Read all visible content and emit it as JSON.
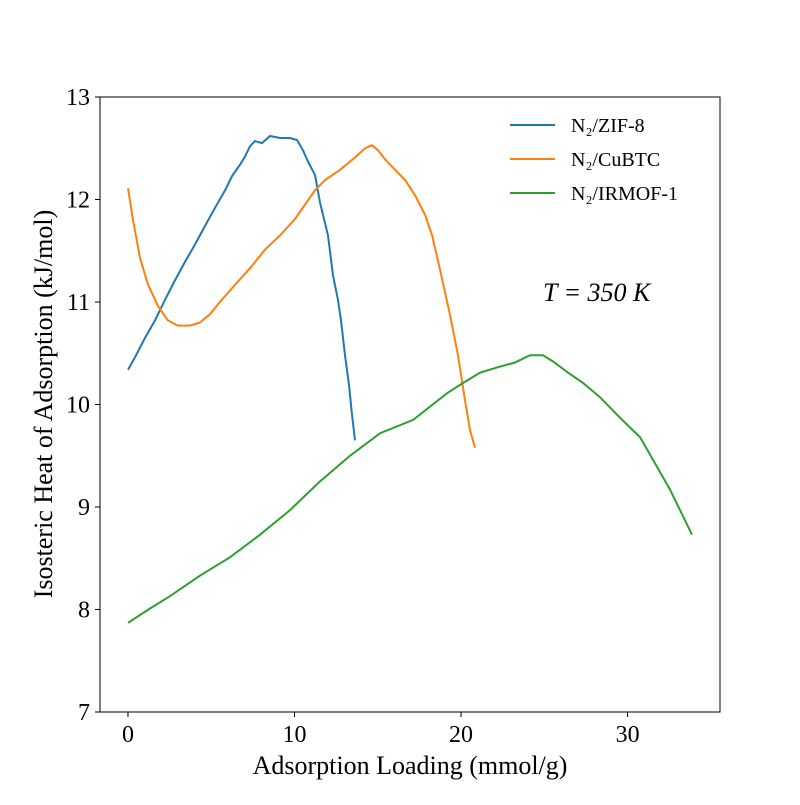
{
  "chart_data": {
    "type": "line",
    "xlabel": "Adsorption Loading (mmol/g)",
    "ylabel": "Isosteric Heat of Adsorption (kJ/mol)",
    "xlim": [
      -1.68,
      35.55
    ],
    "ylim": [
      7,
      13
    ],
    "xticks": [
      0,
      10,
      20,
      30
    ],
    "yticks": [
      7,
      8,
      9,
      10,
      11,
      12,
      13
    ],
    "grid": false,
    "legend_position": "top-right",
    "annotation": "T = 350 K",
    "series": [
      {
        "name": "N₂/ZIF-8",
        "color": "#1f77b4",
        "x": [
          0,
          0.42,
          1.02,
          1.62,
          2.22,
          2.82,
          3.42,
          4.02,
          4.62,
          5.23,
          5.83,
          6.25,
          6.73,
          7.03,
          7.33,
          7.63,
          8.05,
          8.53,
          9.13,
          9.73,
          10.15,
          10.51,
          10.81,
          11.23,
          11.53,
          12.01,
          12.31,
          12.61,
          12.79,
          13.03,
          13.27,
          13.45,
          13.63
        ],
        "y": [
          10.34,
          10.46,
          10.65,
          10.82,
          11.02,
          11.21,
          11.39,
          11.56,
          11.74,
          11.92,
          12.09,
          12.23,
          12.34,
          12.42,
          12.52,
          12.57,
          12.55,
          12.62,
          12.6,
          12.6,
          12.58,
          12.48,
          12.37,
          12.24,
          11.97,
          11.65,
          11.26,
          11.02,
          10.82,
          10.48,
          10.19,
          9.9,
          9.65
        ]
      },
      {
        "name": "N₂/CuBTC",
        "color": "#ff7f0e",
        "x": [
          0,
          0.3,
          0.72,
          1.2,
          1.8,
          2.4,
          3.0,
          3.72,
          4.32,
          4.92,
          5.52,
          6.43,
          7.33,
          8.23,
          9.13,
          10.03,
          10.63,
          11.23,
          11.83,
          12.73,
          13.63,
          14.23,
          14.65,
          15.02,
          15.44,
          16.04,
          16.64,
          17.24,
          17.84,
          18.26,
          18.74,
          19.34,
          19.82,
          20.24,
          20.54,
          20.84
        ],
        "y": [
          12.11,
          11.8,
          11.43,
          11.17,
          10.96,
          10.82,
          10.77,
          10.77,
          10.8,
          10.88,
          11.0,
          11.17,
          11.33,
          11.51,
          11.65,
          11.81,
          11.95,
          12.09,
          12.19,
          12.29,
          12.41,
          12.5,
          12.53,
          12.48,
          12.39,
          12.29,
          12.19,
          12.04,
          11.85,
          11.65,
          11.31,
          10.87,
          10.48,
          10.04,
          9.75,
          9.58
        ]
      },
      {
        "name": "N₂/IRMOF-1",
        "color": "#2ca02c",
        "x": [
          0,
          1.32,
          2.52,
          4.32,
          6.13,
          7.93,
          9.73,
          11.53,
          13.33,
          15.14,
          17.12,
          19.16,
          20.12,
          21.14,
          22.34,
          23.24,
          24.14,
          24.92,
          25.53,
          26.43,
          27.33,
          28.35,
          29.55,
          30.75,
          31.77,
          32.55,
          33.87
        ],
        "y": [
          7.87,
          8.01,
          8.13,
          8.33,
          8.51,
          8.73,
          8.97,
          9.25,
          9.5,
          9.72,
          9.85,
          10.11,
          10.21,
          10.31,
          10.37,
          10.41,
          10.48,
          10.48,
          10.42,
          10.31,
          10.21,
          10.07,
          9.87,
          9.68,
          9.39,
          9.17,
          8.73
        ]
      }
    ]
  }
}
